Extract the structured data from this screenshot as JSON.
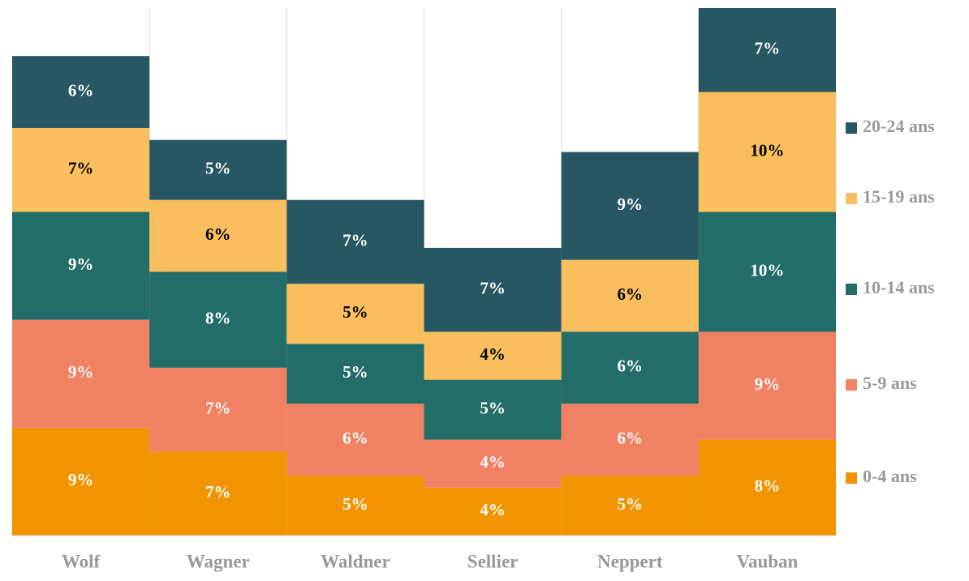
{
  "chart_data": {
    "type": "stacked_bar",
    "categories": [
      "Wolf",
      "Wagner",
      "Waldner",
      "Sellier",
      "Neppert",
      "Vauban"
    ],
    "series": [
      {
        "name": "0-4 ans",
        "color": "#f29400",
        "label_color": "#ffffff",
        "values": [
          9,
          7,
          5,
          4,
          5,
          8
        ],
        "value_labels": [
          "9%",
          "7%",
          "5%",
          "4%",
          "5%",
          "8%"
        ]
      },
      {
        "name": "5-9 ans",
        "color": "#f08162",
        "label_color": "#ffffff",
        "values": [
          9,
          7,
          6,
          4,
          6,
          9
        ],
        "value_labels": [
          "9%",
          "7%",
          "6%",
          "4%",
          "6%",
          "9%"
        ]
      },
      {
        "name": "10-14 ans",
        "color": "#236d69",
        "label_color": "#ffffff",
        "values": [
          9,
          8,
          5,
          5,
          6,
          10
        ],
        "value_labels": [
          "9%",
          "8%",
          "5%",
          "5%",
          "6%",
          "10%"
        ]
      },
      {
        "name": "15-19 ans",
        "color": "#f9bf5f",
        "label_color": "#000000",
        "values": [
          7,
          6,
          5,
          4,
          6,
          10
        ],
        "value_labels": [
          "7%",
          "6%",
          "5%",
          "4%",
          "6%",
          "10%"
        ]
      },
      {
        "name": "20-24 ans",
        "color": "#275763",
        "label_color": "#ffffff",
        "values": [
          6,
          5,
          7,
          7,
          9,
          7
        ],
        "value_labels": [
          "6%",
          "5%",
          "7%",
          "7%",
          "9%",
          "7%"
        ]
      }
    ],
    "legend": "right"
  }
}
